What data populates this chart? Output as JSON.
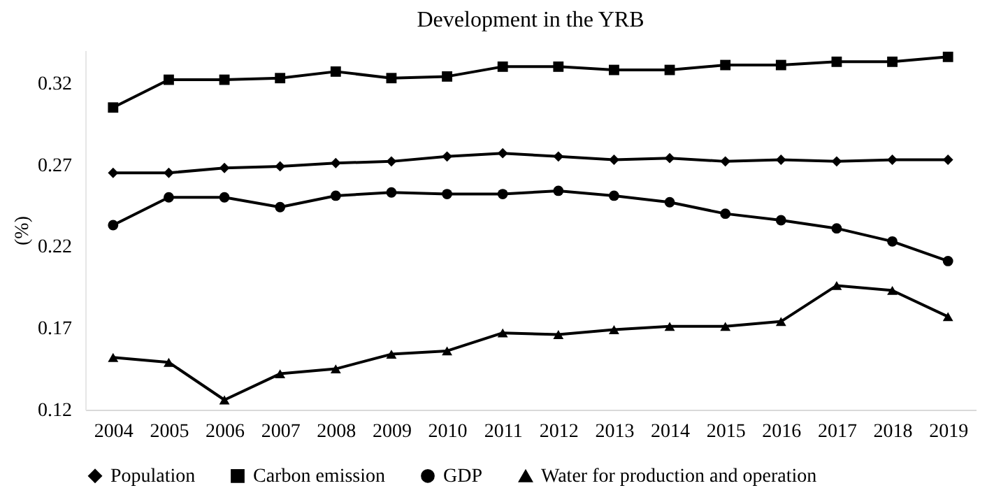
{
  "chart_data": {
    "type": "line",
    "title": "Development in the YRB",
    "ylabel": "(%)",
    "categories": [
      "2004",
      "2005",
      "2006",
      "2007",
      "2008",
      "2009",
      "2010",
      "2011",
      "2012",
      "2013",
      "2014",
      "2015",
      "2016",
      "2017",
      "2018",
      "2019"
    ],
    "ylim": [
      0.12,
      0.34
    ],
    "yticks": [
      0.12,
      0.17,
      0.22,
      0.27,
      0.32
    ],
    "grid": false,
    "legend": "bottom",
    "line_style": "solid",
    "series": [
      {
        "name": "Population",
        "color": "#000000",
        "marker": "diamond",
        "values": [
          0.265,
          0.265,
          0.268,
          0.269,
          0.271,
          0.272,
          0.275,
          0.277,
          0.275,
          0.273,
          0.274,
          0.272,
          0.273,
          0.272,
          0.273,
          0.273
        ]
      },
      {
        "name": "Carbon emission",
        "color": "#000000",
        "marker": "square",
        "values": [
          0.305,
          0.322,
          0.322,
          0.323,
          0.327,
          0.323,
          0.324,
          0.33,
          0.33,
          0.328,
          0.328,
          0.331,
          0.331,
          0.333,
          0.333,
          0.336
        ]
      },
      {
        "name": "GDP",
        "color": "#000000",
        "marker": "circle",
        "values": [
          0.233,
          0.25,
          0.25,
          0.244,
          0.251,
          0.253,
          0.252,
          0.252,
          0.254,
          0.251,
          0.247,
          0.24,
          0.236,
          0.231,
          0.223,
          0.211
        ]
      },
      {
        "name": "Water for production and operation",
        "color": "#000000",
        "marker": "triangle",
        "values": [
          0.152,
          0.149,
          0.126,
          0.142,
          0.145,
          0.154,
          0.156,
          0.167,
          0.166,
          0.169,
          0.171,
          0.171,
          0.174,
          0.196,
          0.193,
          0.177
        ]
      }
    ]
  }
}
